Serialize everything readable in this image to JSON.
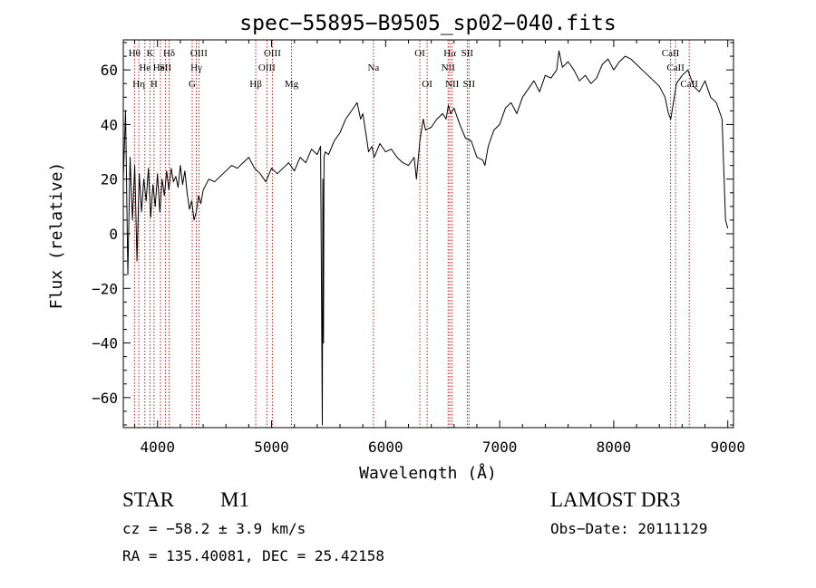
{
  "chart_data": {
    "type": "line",
    "title": "spec−55895−B9505_sp02−040.fits",
    "xlabel": "Wavelength (Å)",
    "ylabel": "Flux (relative)",
    "xlim": [
      3700,
      9050
    ],
    "ylim": [
      -71,
      71
    ],
    "x_ticks": [
      4000,
      5000,
      6000,
      7000,
      8000,
      9000
    ],
    "y_ticks": [
      -60,
      -40,
      -20,
      0,
      20,
      40,
      60
    ],
    "y_tick_labels": [
      "−60",
      "−40",
      "−20",
      "0",
      "20",
      "40",
      "60"
    ],
    "series": [
      {
        "name": "flux",
        "x": [
          3700,
          3720,
          3740,
          3760,
          3780,
          3800,
          3820,
          3840,
          3860,
          3880,
          3900,
          3920,
          3940,
          3960,
          3980,
          4000,
          4020,
          4040,
          4060,
          4080,
          4100,
          4120,
          4140,
          4160,
          4180,
          4200,
          4220,
          4240,
          4260,
          4280,
          4300,
          4320,
          4340,
          4360,
          4380,
          4400,
          4450,
          4500,
          4550,
          4600,
          4650,
          4700,
          4750,
          4800,
          4850,
          4900,
          4950,
          5000,
          5050,
          5100,
          5150,
          5200,
          5250,
          5300,
          5350,
          5400,
          5430,
          5445,
          5450,
          5455,
          5460,
          5470,
          5500,
          5550,
          5600,
          5650,
          5700,
          5750,
          5780,
          5800,
          5830,
          5850,
          5880,
          5900,
          5950,
          6000,
          6050,
          6100,
          6150,
          6200,
          6250,
          6270,
          6300,
          6330,
          6350,
          6400,
          6450,
          6500,
          6530,
          6550,
          6570,
          6600,
          6650,
          6700,
          6750,
          6800,
          6850,
          6870,
          6900,
          6950,
          7000,
          7050,
          7100,
          7150,
          7200,
          7250,
          7300,
          7350,
          7400,
          7450,
          7500,
          7520,
          7550,
          7600,
          7650,
          7700,
          7750,
          7800,
          7850,
          7900,
          7950,
          8000,
          8050,
          8100,
          8150,
          8200,
          8250,
          8300,
          8350,
          8400,
          8450,
          8480,
          8500,
          8550,
          8600,
          8650,
          8700,
          8750,
          8800,
          8850,
          8900,
          8950,
          8980,
          9000
        ],
        "values": [
          20,
          45,
          -15,
          28,
          5,
          25,
          -10,
          22,
          8,
          20,
          12,
          24,
          6,
          18,
          10,
          22,
          8,
          20,
          14,
          23,
          16,
          24,
          19,
          21,
          17,
          25,
          18,
          23,
          15,
          9,
          12,
          5,
          8,
          14,
          11,
          16,
          20,
          19,
          21,
          23,
          25,
          24,
          26,
          28,
          24,
          22,
          19,
          24,
          22,
          24,
          26,
          23,
          28,
          26,
          31,
          29,
          32,
          -70,
          20,
          -40,
          28,
          30,
          29,
          34,
          37,
          42,
          45,
          48,
          42,
          44,
          36,
          30,
          32,
          28,
          33,
          30,
          31,
          28,
          26,
          25,
          28,
          20,
          34,
          42,
          38,
          39,
          42,
          44,
          42,
          47,
          44,
          46,
          40,
          35,
          34,
          28,
          27,
          25,
          32,
          38,
          40,
          46,
          48,
          44,
          50,
          53,
          56,
          52,
          58,
          57,
          60,
          67,
          61,
          63,
          60,
          56,
          58,
          55,
          57,
          62,
          64,
          60,
          63,
          65,
          64,
          62,
          60,
          58,
          56,
          54,
          50,
          44,
          42,
          55,
          58,
          60,
          54,
          52,
          56,
          50,
          48,
          42,
          5,
          2
        ]
      }
    ],
    "line_markers": [
      {
        "label": "Hθ",
        "x": 3798,
        "row": 1
      },
      {
        "label": "Hη",
        "x": 3836,
        "row": 3
      },
      {
        "label": "He",
        "x": 3889,
        "row": 2
      },
      {
        "label": "K",
        "x": 3934,
        "row": 1
      },
      {
        "label": "H",
        "x": 3969,
        "row": 3
      },
      {
        "label": "HeI",
        "x": 4026,
        "row": 2
      },
      {
        "label": "SII",
        "x": 4069,
        "row": 2
      },
      {
        "label": "Hδ",
        "x": 4102,
        "row": 1
      },
      {
        "label": "G",
        "x": 4304,
        "row": 3
      },
      {
        "label": "Hγ",
        "x": 4340,
        "row": 2
      },
      {
        "label": "OIII",
        "x": 4363,
        "row": 1
      },
      {
        "label": "Hβ",
        "x": 4861,
        "row": 3
      },
      {
        "label": "OIII",
        "x": 4959,
        "row": 2
      },
      {
        "label": "OIII",
        "x": 5007,
        "row": 1
      },
      {
        "label": "Mg",
        "x": 5175,
        "row": 3
      },
      {
        "label": "Na",
        "x": 5893,
        "row": 2
      },
      {
        "label": "OI",
        "x": 6300,
        "row": 1
      },
      {
        "label": "OI",
        "x": 6364,
        "row": 3
      },
      {
        "label": "NII",
        "x": 6548,
        "row": 2
      },
      {
        "label": "Hα",
        "x": 6563,
        "row": 1
      },
      {
        "label": "NII",
        "x": 6583,
        "row": 3
      },
      {
        "label": "SII",
        "x": 6716,
        "row": 1
      },
      {
        "label": "SII",
        "x": 6731,
        "row": 3
      },
      {
        "label": "CaII",
        "x": 8498,
        "row": 1
      },
      {
        "label": "CaII",
        "x": 8542,
        "row": 2
      },
      {
        "label": "CaII",
        "x": 8662,
        "row": 3
      }
    ]
  },
  "info": {
    "object_class": "STAR",
    "subclass": "M1",
    "survey": "LAMOST DR3",
    "cz": "cz = −58.2 ± 3.9 km/s",
    "obs_date": "Obs−Date: 20111129",
    "coords": "RA = 135.40081, DEC =  25.42158"
  }
}
